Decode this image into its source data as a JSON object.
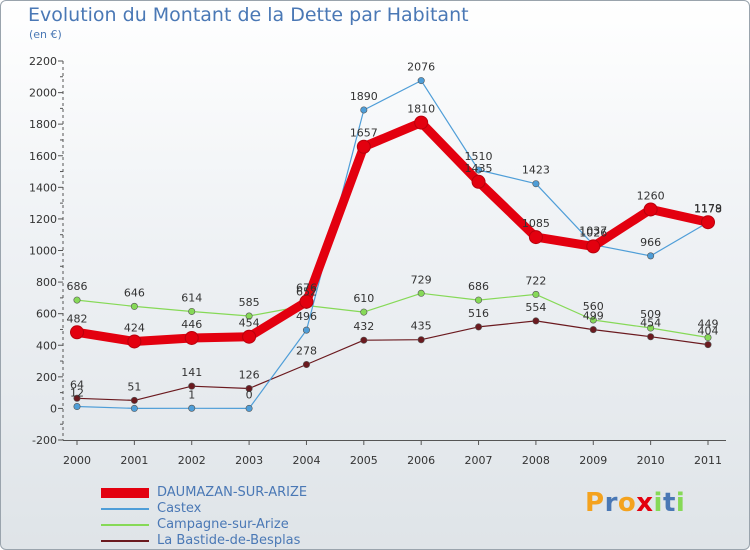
{
  "title": "Evolution du Montant de la Dette par Habitant",
  "subtitle": "(en €)",
  "logo_text": "Proxiti",
  "chart_data": {
    "type": "line",
    "title": "Evolution du Montant de la Dette par Habitant",
    "subtitle": "(en €)",
    "xlabel": "",
    "ylabel": "",
    "x": [
      "2000",
      "2001",
      "2002",
      "2003",
      "2004",
      "2005",
      "2006",
      "2007",
      "2008",
      "2009",
      "2010",
      "2011"
    ],
    "ylim": [
      -200,
      2200
    ],
    "yticks": [
      -200,
      0,
      200,
      400,
      600,
      800,
      1000,
      1200,
      1400,
      1600,
      1800,
      2000,
      2200
    ],
    "grid": false,
    "legend_position": "bottom-left",
    "series": [
      {
        "name": "DAUMAZAN-SUR-ARIZE",
        "color": "#e3000f",
        "values": [
          482,
          424,
          446,
          454,
          676,
          1657,
          1810,
          1435,
          1085,
          1026,
          1260,
          1179
        ]
      },
      {
        "name": "Castex",
        "color": "#4f9ed8",
        "values": [
          12,
          0,
          1,
          0,
          496,
          1890,
          2076,
          1510,
          1423,
          1037,
          966,
          1178
        ]
      },
      {
        "name": "Campagne-sur-Arize",
        "color": "#86d957",
        "values": [
          686,
          646,
          614,
          585,
          652,
          610,
          729,
          686,
          722,
          560,
          509,
          449
        ]
      },
      {
        "name": "La Bastide-de-Besplas",
        "color": "#6b1a1f",
        "values": [
          64,
          51,
          141,
          126,
          278,
          432,
          435,
          516,
          554,
          499,
          454,
          404
        ]
      }
    ],
    "data_labels": [
      [
        "482",
        "424",
        "446",
        "454",
        "676",
        "1657",
        "1810",
        "1435",
        "1085",
        "1026",
        "1260",
        "1179"
      ],
      [
        "12",
        "",
        "1",
        "0",
        "496",
        "1890",
        "2076",
        "1510",
        "1423",
        "1037",
        "966",
        "1178"
      ],
      [
        "686",
        "646",
        "614",
        "585",
        "652",
        "610",
        "729",
        "686",
        "722",
        "560",
        "509",
        "449"
      ],
      [
        "64",
        "51",
        "141",
        "126",
        "278",
        "432",
        "435",
        "516",
        "554",
        "499",
        "454",
        "404"
      ]
    ]
  },
  "colors": {
    "title": "#4a78b5",
    "axis": "#555555",
    "tick_text": "#333333",
    "logo": [
      "#f4a21e",
      "#4a78b5",
      "#e3000f",
      "#86d957"
    ]
  }
}
